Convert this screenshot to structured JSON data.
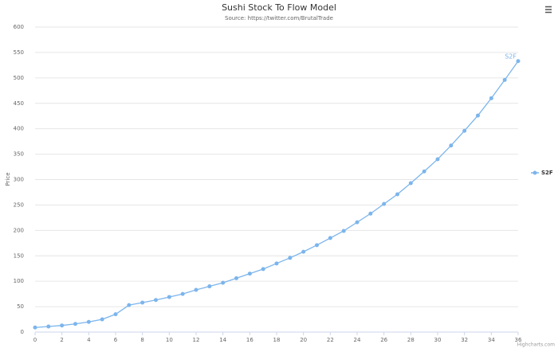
{
  "chart_data": {
    "type": "line",
    "title": "Sushi Stock To Flow Model",
    "subtitle": "Source: https://twitter.com/BrutalTrade",
    "y_label": "Price",
    "credits": "Highcharts.com",
    "x": [
      0,
      1,
      2,
      3,
      4,
      5,
      6,
      7,
      8,
      9,
      10,
      11,
      12,
      13,
      14,
      15,
      16,
      17,
      18,
      19,
      20,
      21,
      22,
      23,
      24,
      25,
      26,
      27,
      28,
      29,
      30,
      31,
      32,
      33,
      34,
      35,
      36
    ],
    "series": [
      {
        "name": "S2F",
        "color": "#7cb5ec",
        "values": [
          9,
          11,
          13,
          16,
          20,
          25,
          35,
          53,
          58,
          63,
          69,
          75,
          83,
          90,
          97,
          106,
          115,
          124,
          135,
          146,
          158,
          171,
          185,
          199,
          216,
          233,
          252,
          271,
          293,
          316,
          340,
          367,
          396,
          426,
          460,
          496,
          533
        ]
      }
    ],
    "xlim": [
      0,
      36
    ],
    "xticks": [
      0,
      2,
      4,
      6,
      8,
      10,
      12,
      14,
      16,
      18,
      20,
      22,
      24,
      26,
      28,
      30,
      32,
      34,
      36
    ],
    "ylim": [
      0,
      600
    ],
    "yticks": [
      0,
      50,
      100,
      150,
      200,
      250,
      300,
      350,
      400,
      450,
      500,
      550,
      600
    ],
    "grid": true,
    "legend": "right"
  }
}
